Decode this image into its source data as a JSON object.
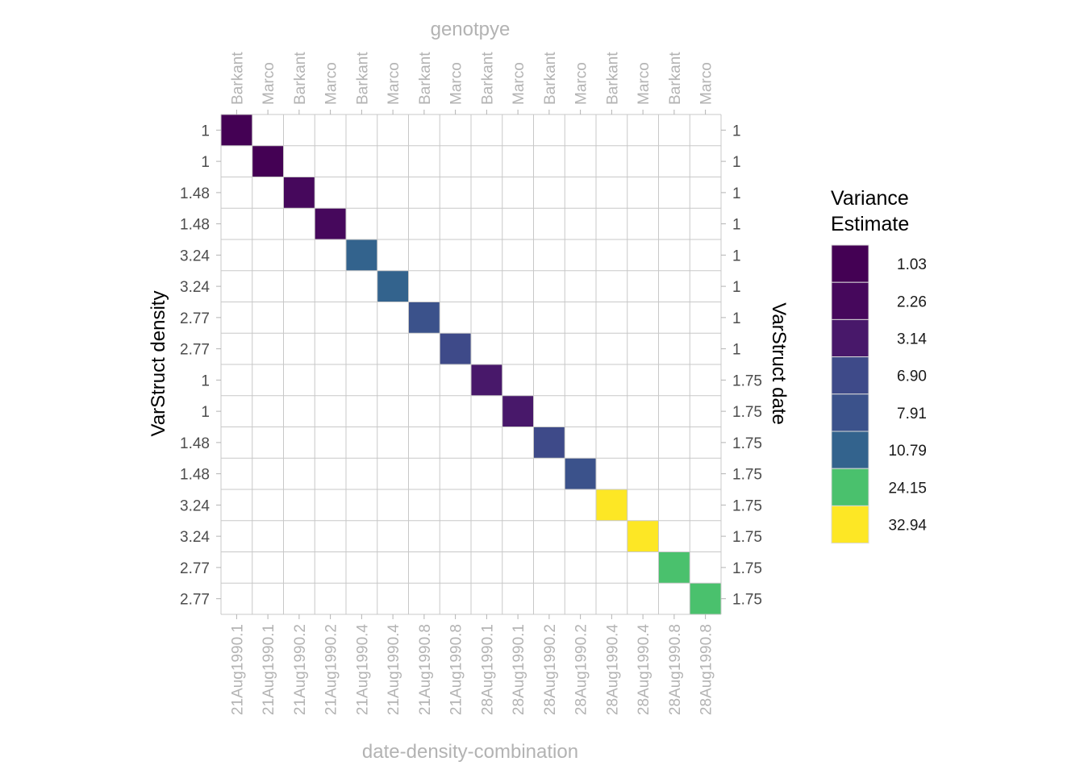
{
  "chart_data": {
    "type": "heatmap",
    "top_axis_title": "genotpye",
    "bottom_axis_title": "date-density-combination",
    "left_axis_title": "VarStruct density",
    "right_axis_title": "VarStruct date",
    "top_labels": [
      "Barkant",
      "Marco",
      "Barkant",
      "Marco",
      "Barkant",
      "Marco",
      "Barkant",
      "Marco",
      "Barkant",
      "Marco",
      "Barkant",
      "Marco",
      "Barkant",
      "Marco",
      "Barkant",
      "Marco"
    ],
    "bottom_labels": [
      "21Aug1990.1",
      "21Aug1990.1",
      "21Aug1990.2",
      "21Aug1990.2",
      "21Aug1990.4",
      "21Aug1990.4",
      "21Aug1990.8",
      "21Aug1990.8",
      "28Aug1990.1",
      "28Aug1990.1",
      "28Aug1990.2",
      "28Aug1990.2",
      "28Aug1990.4",
      "28Aug1990.4",
      "28Aug1990.8",
      "28Aug1990.8"
    ],
    "left_labels": [
      "1",
      "1",
      "1.48",
      "1.48",
      "3.24",
      "3.24",
      "2.77",
      "2.77",
      "1",
      "1",
      "1.48",
      "1.48",
      "3.24",
      "3.24",
      "2.77",
      "2.77"
    ],
    "right_labels": [
      "1",
      "1",
      "1",
      "1",
      "1",
      "1",
      "1",
      "1",
      "1.75",
      "1.75",
      "1.75",
      "1.75",
      "1.75",
      "1.75",
      "1.75",
      "1.75"
    ],
    "diagonal_values": [
      1.03,
      1.03,
      2.26,
      2.26,
      10.79,
      10.79,
      7.91,
      6.9,
      3.14,
      3.14,
      6.9,
      7.91,
      32.94,
      32.94,
      24.15,
      24.15
    ],
    "off_diagonal": "blank",
    "grid": true,
    "legend": {
      "title_lines": [
        "Variance",
        "Estimate"
      ],
      "position": "right",
      "entries": [
        {
          "label": "1.03",
          "color": "#440154"
        },
        {
          "label": "2.26",
          "color": "#46085c"
        },
        {
          "label": "3.14",
          "color": "#48186a"
        },
        {
          "label": "6.90",
          "color": "#3e4a89"
        },
        {
          "label": "7.91",
          "color": "#3b528b"
        },
        {
          "label": "10.79",
          "color": "#33638d"
        },
        {
          "label": "24.15",
          "color": "#4ac16d"
        },
        {
          "label": "32.94",
          "color": "#fde725"
        }
      ]
    }
  }
}
